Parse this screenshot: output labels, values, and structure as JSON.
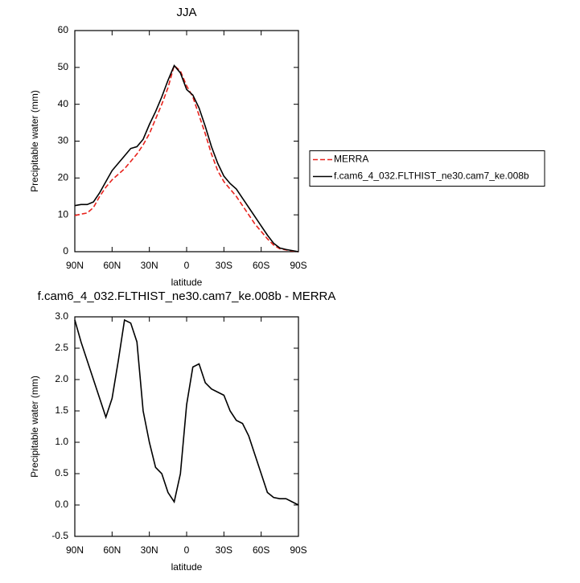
{
  "chart_data": [
    {
      "type": "line",
      "title": "JJA",
      "x_label": "latitude",
      "y_label": "Precipitable water (mm)",
      "x": [
        90,
        85,
        80,
        75,
        70,
        65,
        60,
        55,
        50,
        45,
        40,
        35,
        30,
        25,
        20,
        15,
        10,
        5,
        0,
        -5,
        -10,
        -15,
        -20,
        -25,
        -30,
        -35,
        -40,
        -45,
        -50,
        -55,
        -60,
        -65,
        -70,
        -75,
        -80,
        -85,
        -90
      ],
      "xlim": [
        90,
        -90
      ],
      "xticks": [
        {
          "value": 90,
          "label": "90N"
        },
        {
          "value": 60,
          "label": "60N"
        },
        {
          "value": 30,
          "label": "30N"
        },
        0,
        {
          "value": -30,
          "label": "30S"
        },
        {
          "value": -60,
          "label": "60S"
        },
        {
          "value": -90,
          "label": "90S"
        }
      ],
      "ylim": [
        0,
        60
      ],
      "yticks": [
        0,
        10,
        20,
        30,
        40,
        50,
        60
      ],
      "legend": "right",
      "series": [
        {
          "name": "MERRA",
          "color": "#e8221c",
          "line_style": "dashed",
          "values": [
            9.8,
            10.2,
            10.5,
            12,
            15,
            17.5,
            19.5,
            21,
            22.5,
            24.5,
            26.5,
            29,
            32,
            36,
            40,
            44.5,
            50.5,
            49,
            45,
            42,
            37,
            32,
            26.5,
            22,
            19,
            17,
            15,
            12.5,
            10,
            7.5,
            5.5,
            3.5,
            1.8,
            0.8,
            0.5,
            0.2,
            0
          ]
        },
        {
          "name": "f.cam6_4_032.FLTHIST_ne30.cam7_ke.008b",
          "color": "#000000",
          "line_style": "solid",
          "values": [
            12.5,
            12.8,
            12.8,
            13.5,
            16,
            19,
            22,
            24,
            26,
            28,
            28.5,
            30.5,
            34.5,
            38,
            42,
            46.5,
            50.5,
            48.5,
            44,
            42.5,
            39,
            34,
            28.5,
            24,
            20.5,
            18.5,
            17,
            14.5,
            12,
            9.5,
            7,
            4.5,
            2.3,
            1,
            0.6,
            0.3,
            0
          ]
        }
      ]
    },
    {
      "type": "line",
      "title": "f.cam6_4_032.FLTHIST_ne30.cam7_ke.008b - MERRA",
      "x_label": "latitude",
      "y_label": "Precipitable water (mm)",
      "x": [
        90,
        85,
        80,
        75,
        70,
        65,
        60,
        55,
        50,
        45,
        40,
        35,
        30,
        25,
        20,
        15,
        10,
        5,
        0,
        -5,
        -10,
        -15,
        -20,
        -25,
        -30,
        -35,
        -40,
        -45,
        -50,
        -55,
        -60,
        -65,
        -70,
        -75,
        -80,
        -85,
        -90
      ],
      "xlim": [
        90,
        -90
      ],
      "xticks": [
        {
          "value": 90,
          "label": "90N"
        },
        {
          "value": 60,
          "label": "60N"
        },
        {
          "value": 30,
          "label": "30N"
        },
        0,
        {
          "value": -30,
          "label": "30S"
        },
        {
          "value": -60,
          "label": "60S"
        },
        {
          "value": -90,
          "label": "90S"
        }
      ],
      "ylim": [
        -0.5,
        3
      ],
      "yticks": [
        {
          "value": -0.5,
          "label": "-0.5"
        },
        {
          "value": 0,
          "label": "0.0"
        },
        0.5,
        {
          "value": 1,
          "label": "1.0"
        },
        1.5,
        {
          "value": 2,
          "label": "2.0"
        },
        2.5,
        {
          "value": 3,
          "label": "3.0"
        }
      ],
      "series": [
        {
          "color": "#000000",
          "line_style": "solid",
          "values": [
            2.95,
            2.6,
            2.3,
            2.0,
            1.7,
            1.4,
            1.7,
            2.3,
            2.95,
            2.9,
            2.6,
            1.5,
            1.0,
            0.6,
            0.5,
            0.2,
            0.05,
            0.5,
            1.6,
            2.2,
            2.25,
            1.95,
            1.85,
            1.8,
            1.75,
            1.5,
            1.35,
            1.3,
            1.1,
            0.8,
            0.5,
            0.2,
            0.12,
            0.1,
            0.1,
            0.05,
            0.0
          ]
        }
      ]
    }
  ]
}
